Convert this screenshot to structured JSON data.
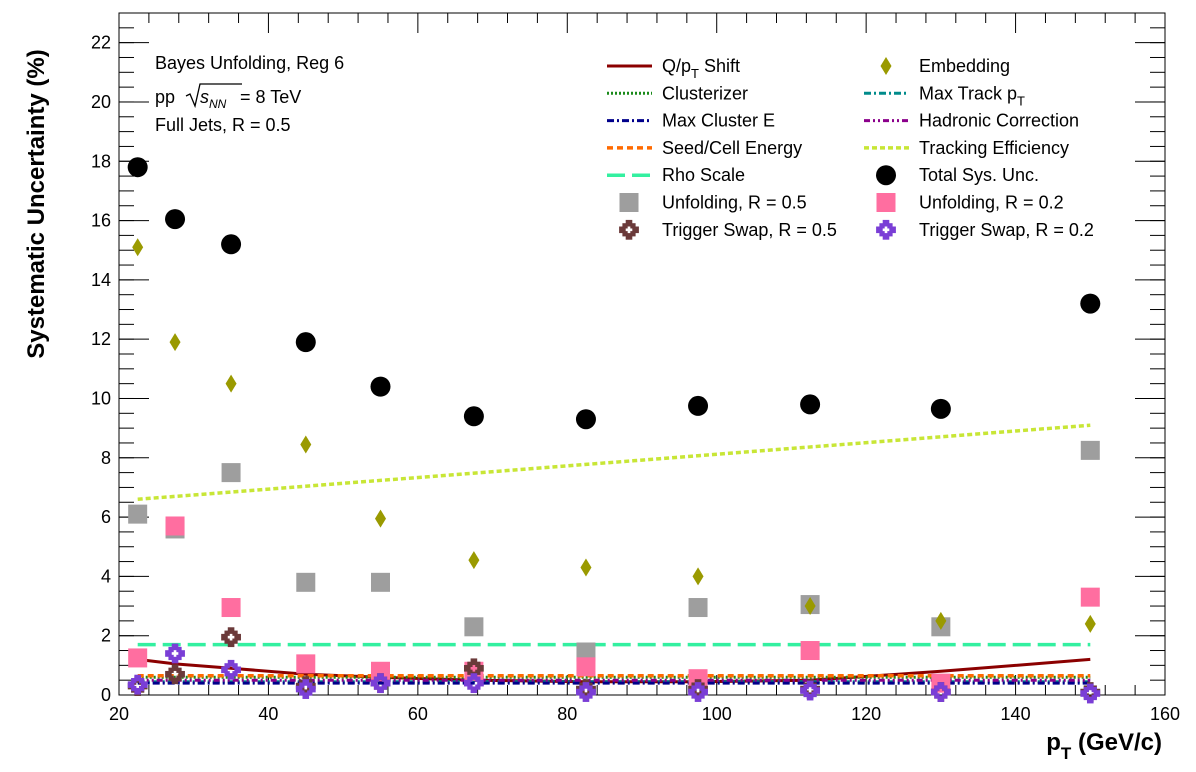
{
  "chart_data": {
    "type": "scatter",
    "xlabel_main": "p",
    "xlabel_sub": "T",
    "xlabel_unit": " (GeV/c)",
    "ylabel": "Systematic Uncertainty (%)",
    "xlim": [
      20,
      160
    ],
    "ylim": [
      0,
      23
    ],
    "x_ticks": [
      20,
      40,
      60,
      80,
      100,
      120,
      140,
      160
    ],
    "y_ticks": [
      0,
      2,
      4,
      6,
      8,
      10,
      12,
      14,
      16,
      18,
      20,
      22
    ],
    "grid": false,
    "info": [
      "Bayes Unfolding, Reg 6",
      "pp",
      "= 8 TeV",
      "Full Jets, R = 0.5"
    ],
    "info_sqrt": "s",
    "info_sqrt_sub": "NN",
    "bins": [
      22.5,
      27.5,
      35,
      45,
      55,
      67.5,
      82.5,
      97.5,
      112.5,
      130,
      150
    ],
    "series": [
      {
        "id": "qpt",
        "name": "Q/p",
        "name_sub": "T",
        "name_tail": " Shift",
        "kind": "line",
        "style": "solid",
        "color": "#8b0000",
        "x": [
          22.5,
          27.5,
          35,
          45,
          55,
          67.5,
          82.5,
          97.5,
          112.5,
          130,
          150
        ],
        "y": [
          1.2,
          1.05,
          0.9,
          0.7,
          0.6,
          0.5,
          0.45,
          0.45,
          0.5,
          0.8,
          1.2
        ]
      },
      {
        "id": "embedding",
        "name": "Embedding",
        "kind": "marker",
        "marker": "diamond",
        "color": "#9a9a00",
        "x": [
          22.5,
          27.5,
          35,
          45,
          55,
          67.5,
          82.5,
          97.5,
          112.5,
          130,
          150
        ],
        "y": [
          15.1,
          11.9,
          10.5,
          8.45,
          5.95,
          4.55,
          4.3,
          4.0,
          3.0,
          2.5,
          2.4
        ]
      },
      {
        "id": "clusterizer",
        "name": "Clusterizer",
        "kind": "line",
        "style": "dotted",
        "color": "#1a8a1a",
        "x": [
          22.5,
          150
        ],
        "y": [
          0.6,
          0.6
        ]
      },
      {
        "id": "maxtrack",
        "name": "Max Track p",
        "name_sub": "T",
        "kind": "line",
        "style": "dashdot",
        "color": "#008b8b",
        "x": [
          22.5,
          150
        ],
        "y": [
          0.45,
          0.45
        ]
      },
      {
        "id": "maxcluster",
        "name": "Max Cluster E",
        "kind": "line",
        "style": "dashdot",
        "color": "#00008b",
        "x": [
          22.5,
          150
        ],
        "y": [
          0.4,
          0.4
        ]
      },
      {
        "id": "hadronic",
        "name": "Hadronic Correction",
        "kind": "line",
        "style": "dashdotdot",
        "color": "#8b008b",
        "x": [
          22.5,
          150
        ],
        "y": [
          0.5,
          0.5
        ]
      },
      {
        "id": "seedcell",
        "name": "Seed/Cell Energy",
        "kind": "line",
        "style": "dashed",
        "color": "#ff6a00",
        "x": [
          22.5,
          150
        ],
        "y": [
          0.65,
          0.65
        ]
      },
      {
        "id": "tracking",
        "name": "Tracking Efficiency",
        "kind": "line",
        "style": "dashdense",
        "color": "#c8e636",
        "x": [
          22.5,
          150
        ],
        "y": [
          6.6,
          9.1
        ]
      },
      {
        "id": "rho",
        "name": "Rho Scale",
        "kind": "line",
        "style": "longdash",
        "color": "#33f0a0",
        "x": [
          22.5,
          150
        ],
        "y": [
          1.7,
          1.7
        ]
      },
      {
        "id": "total",
        "name": "Total Sys. Unc.",
        "kind": "marker",
        "marker": "circle",
        "color": "#000000",
        "x": [
          22.5,
          27.5,
          35,
          45,
          55,
          67.5,
          82.5,
          97.5,
          112.5,
          130,
          150
        ],
        "y": [
          17.8,
          16.05,
          15.2,
          11.9,
          10.4,
          9.4,
          9.3,
          9.75,
          9.8,
          9.65,
          13.2
        ]
      },
      {
        "id": "unf05",
        "name": "Unfolding, R = 0.5",
        "kind": "marker",
        "marker": "square",
        "color": "#9e9e9e",
        "x": [
          22.5,
          27.5,
          35,
          45,
          55,
          67.5,
          82.5,
          97.5,
          112.5,
          130,
          150
        ],
        "y": [
          6.1,
          5.6,
          7.5,
          3.8,
          3.8,
          2.3,
          1.45,
          2.95,
          3.05,
          2.3,
          8.25
        ]
      },
      {
        "id": "unf02",
        "name": "Unfolding, R = 0.2",
        "kind": "marker",
        "marker": "square",
        "color": "#ff6ea0",
        "x": [
          22.5,
          27.5,
          35,
          45,
          55,
          67.5,
          82.5,
          97.5,
          112.5,
          130,
          150
        ],
        "y": [
          1.25,
          5.7,
          2.95,
          1.05,
          0.8,
          0.8,
          0.95,
          0.55,
          1.5,
          0.4,
          3.3
        ]
      },
      {
        "id": "trig05",
        "name": "Trigger Swap, R = 0.5",
        "kind": "marker",
        "marker": "cross",
        "color": "#6b3a3a",
        "x": [
          22.5,
          27.5,
          35,
          45,
          55,
          67.5,
          82.5,
          97.5,
          112.5,
          130,
          150
        ],
        "y": [
          0.3,
          0.7,
          1.95,
          0.3,
          0.4,
          0.9,
          0.2,
          0.2,
          0.2,
          0.1,
          0.1
        ]
      },
      {
        "id": "trig02",
        "name": "Trigger Swap, R = 0.2",
        "kind": "marker",
        "marker": "cross",
        "color": "#7a3ed6",
        "x": [
          22.5,
          27.5,
          35,
          45,
          55,
          67.5,
          82.5,
          97.5,
          112.5,
          130,
          150
        ],
        "y": [
          0.35,
          1.4,
          0.85,
          0.2,
          0.4,
          0.4,
          0.1,
          0.1,
          0.15,
          0.1,
          0.05
        ]
      }
    ],
    "legend_order": [
      "qpt",
      "embedding",
      "clusterizer",
      "maxtrack",
      "maxcluster",
      "hadronic",
      "seedcell",
      "tracking",
      "rho",
      "total",
      "unf05",
      "unf02",
      "trig05",
      "trig02"
    ],
    "legend_placement": "top-right"
  }
}
